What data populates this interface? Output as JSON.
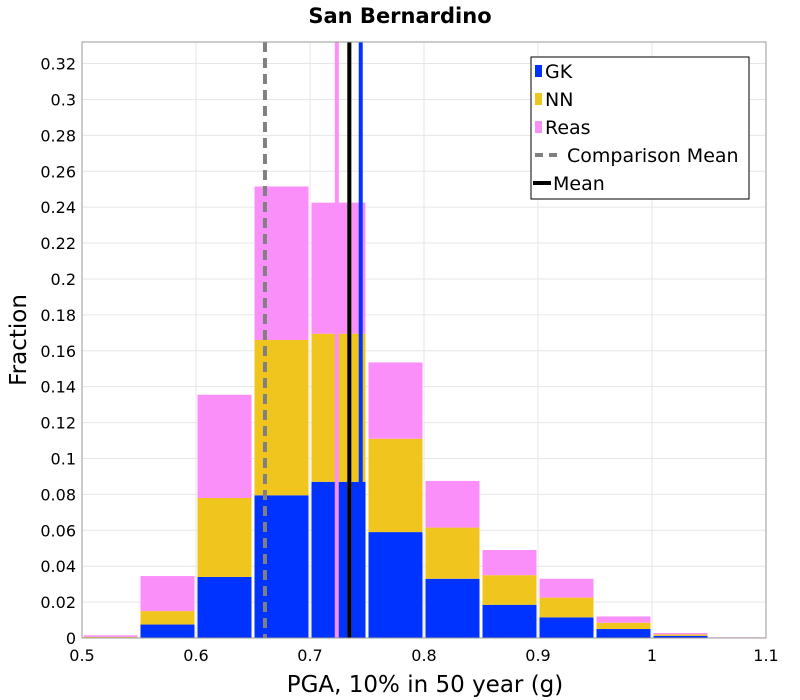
{
  "chart_data": {
    "type": "bar",
    "stacked": true,
    "title": "San Bernardino",
    "xlabel": "PGA, 10% in 50 year (g)",
    "ylabel": "Fraction",
    "xlim": [
      0.5,
      1.1
    ],
    "ylim": [
      0,
      0.332
    ],
    "xticks": [
      "0.5",
      "0.6",
      "0.7",
      "0.8",
      "0.9",
      "1",
      "1.1"
    ],
    "yticks": [
      "0",
      "0.02",
      "0.04",
      "0.06",
      "0.08",
      "0.1",
      "0.12",
      "0.14",
      "0.16",
      "0.18",
      "0.2",
      "0.22",
      "0.24",
      "0.26",
      "0.28",
      "0.3",
      "0.32"
    ],
    "grid": true,
    "legend_position": "top-right",
    "bins": [
      {
        "x0": 0.5,
        "x1": 0.55
      },
      {
        "x0": 0.55,
        "x1": 0.6
      },
      {
        "x0": 0.6,
        "x1": 0.65
      },
      {
        "x0": 0.65,
        "x1": 0.7
      },
      {
        "x0": 0.7,
        "x1": 0.75
      },
      {
        "x0": 0.75,
        "x1": 0.8
      },
      {
        "x0": 0.8,
        "x1": 0.85
      },
      {
        "x0": 0.85,
        "x1": 0.9
      },
      {
        "x0": 0.9,
        "x1": 0.95
      },
      {
        "x0": 0.95,
        "x1": 1.0
      },
      {
        "x0": 1.0,
        "x1": 1.05
      },
      {
        "x0": 1.05,
        "x1": 1.1
      }
    ],
    "series": [
      {
        "name": "GK",
        "color": "#0033ff",
        "values": [
          0.0003,
          0.0075,
          0.034,
          0.0795,
          0.087,
          0.059,
          0.033,
          0.0185,
          0.0115,
          0.005,
          0.0012,
          0.0002
        ]
      },
      {
        "name": "NN",
        "color": "#f0c61e",
        "values": [
          0.0003,
          0.0075,
          0.044,
          0.0865,
          0.0825,
          0.052,
          0.0285,
          0.0165,
          0.011,
          0.0035,
          0.0008,
          0.0001
        ]
      },
      {
        "name": "Reas",
        "color": "#fa8ffa",
        "values": [
          0.0009,
          0.0195,
          0.0575,
          0.0855,
          0.073,
          0.0425,
          0.026,
          0.014,
          0.0105,
          0.0035,
          0.0008,
          0.0001
        ]
      }
    ],
    "mean_lines": [
      {
        "name": "Reas mean",
        "x": 0.7235,
        "color": "#fa8ffa",
        "width": 4,
        "dashed": false
      },
      {
        "name": "NN mean",
        "x": 0.7345,
        "color": "#f0c61e",
        "width": 4,
        "dashed": false
      },
      {
        "name": "GK mean",
        "x": 0.7445,
        "color": "#0033ff",
        "width": 4,
        "dashed": false
      },
      {
        "name": "Mean",
        "x": 0.7345,
        "color": "#000000",
        "width": 4,
        "dashed": false
      },
      {
        "name": "Comparison Mean",
        "x": 0.6605,
        "color": "#808080",
        "width": 4,
        "dashed": true
      }
    ],
    "legend": [
      {
        "label": "GK",
        "kind": "box",
        "color": "#0033ff"
      },
      {
        "label": "NN",
        "kind": "box",
        "color": "#f0c61e"
      },
      {
        "label": "Reas",
        "kind": "box",
        "color": "#fa8ffa"
      },
      {
        "label": "Comparison Mean",
        "kind": "dash",
        "color": "#808080"
      },
      {
        "label": "Mean",
        "kind": "line",
        "color": "#000000"
      }
    ]
  }
}
